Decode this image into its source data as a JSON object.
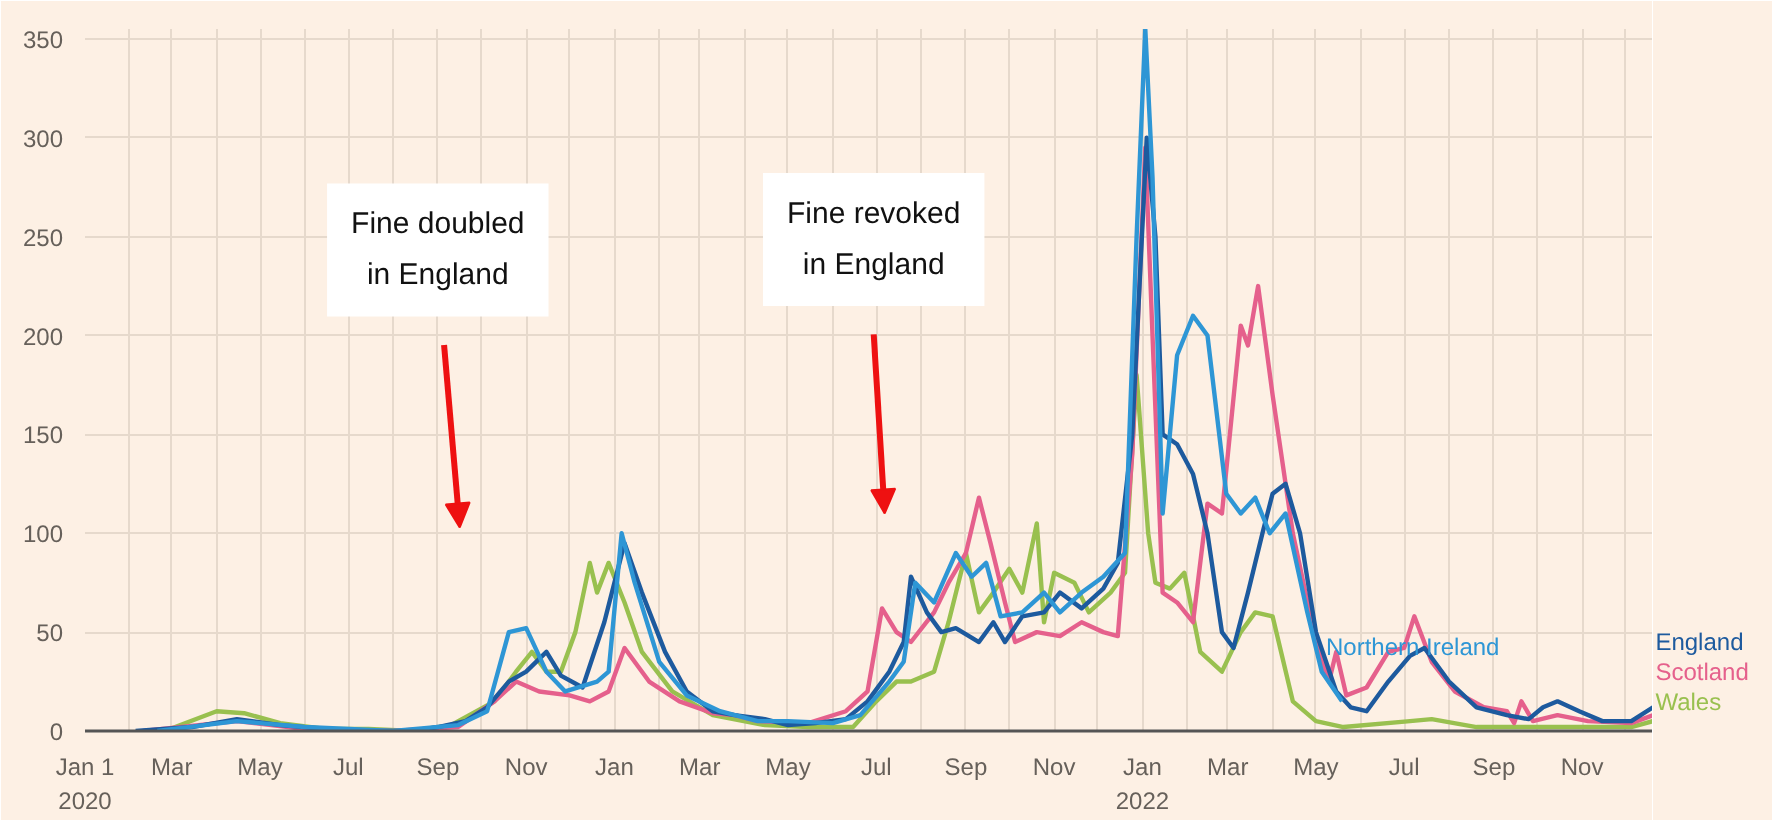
{
  "chart_data": {
    "type": "line",
    "annotations": [
      "Fine doubled\nin England",
      "Fine revoked\nin England"
    ],
    "xlim": [
      "2020-01-01",
      "2022-12-20"
    ],
    "ylim": [
      0,
      355
    ],
    "yticks": [
      0,
      50,
      100,
      150,
      200,
      250,
      300,
      350
    ],
    "xticks": [
      {
        "value": "2020-01-01",
        "label": "Jan 1\n2020"
      },
      {
        "value": "2020-02-01",
        "label": null
      },
      {
        "value": "2020-03-01",
        "label": "Mar"
      },
      {
        "value": "2020-04-01",
        "label": null
      },
      {
        "value": "2020-05-01",
        "label": "May"
      },
      {
        "value": "2020-06-01",
        "label": null
      },
      {
        "value": "2020-07-01",
        "label": "Jul"
      },
      {
        "value": "2020-08-01",
        "label": null
      },
      {
        "value": "2020-09-01",
        "label": "Sep"
      },
      {
        "value": "2020-10-01",
        "label": null
      },
      {
        "value": "2020-11-01",
        "label": "Nov"
      },
      {
        "value": "2020-12-01",
        "label": null
      },
      {
        "value": "2021-01-01",
        "label": "Jan"
      },
      {
        "value": "2021-02-01",
        "label": null
      },
      {
        "value": "2021-03-01",
        "label": "Mar"
      },
      {
        "value": "2021-04-01",
        "label": null
      },
      {
        "value": "2021-05-01",
        "label": "May"
      },
      {
        "value": "2021-06-01",
        "label": null
      },
      {
        "value": "2021-07-01",
        "label": "Jul"
      },
      {
        "value": "2021-08-01",
        "label": null
      },
      {
        "value": "2021-09-01",
        "label": "Sep"
      },
      {
        "value": "2021-10-01",
        "label": null
      },
      {
        "value": "2021-11-01",
        "label": "Nov"
      },
      {
        "value": "2021-12-01",
        "label": null
      },
      {
        "value": "2022-01-01",
        "label": "Jan\n2022"
      },
      {
        "value": "2022-02-01",
        "label": null
      },
      {
        "value": "2022-03-01",
        "label": "Mar"
      },
      {
        "value": "2022-04-01",
        "label": null
      },
      {
        "value": "2022-05-01",
        "label": "May"
      },
      {
        "value": "2022-06-01",
        "label": null
      },
      {
        "value": "2022-07-01",
        "label": "Jul"
      },
      {
        "value": "2022-08-01",
        "label": null
      },
      {
        "value": "2022-09-01",
        "label": "Sep"
      },
      {
        "value": "2022-10-01",
        "label": null
      },
      {
        "value": "2022-11-01",
        "label": "Nov"
      },
      {
        "value": "2022-12-01",
        "label": null
      }
    ],
    "grid": true,
    "series": [
      {
        "name": "Wales",
        "color": "#99c04f",
        "x": [
          "2020-02-25",
          "2020-04-01",
          "2020-04-20",
          "2020-05-15",
          "2020-06-15",
          "2020-07-15",
          "2020-08-15",
          "2020-09-10",
          "2020-10-10",
          "2020-10-25",
          "2020-11-05",
          "2020-11-15",
          "2020-11-25",
          "2020-12-05",
          "2020-12-15",
          "2020-12-20",
          "2020-12-28",
          "2021-01-08",
          "2021-01-20",
          "2021-02-10",
          "2021-03-10",
          "2021-04-15",
          "2021-05-15",
          "2021-06-15",
          "2021-07-01",
          "2021-07-15",
          "2021-07-25",
          "2021-08-10",
          "2021-08-20",
          "2021-09-01",
          "2021-09-10",
          "2021-09-20",
          "2021-10-01",
          "2021-10-10",
          "2021-10-20",
          "2021-10-25",
          "2021-11-01",
          "2021-11-15",
          "2021-11-25",
          "2021-12-10",
          "2021-12-20",
          "2021-12-28",
          "2022-01-05",
          "2022-01-10",
          "2022-01-20",
          "2022-01-30",
          "2022-02-10",
          "2022-02-25",
          "2022-03-10",
          "2022-03-20",
          "2022-04-01",
          "2022-04-15",
          "2022-05-01",
          "2022-05-20",
          "2022-07-05",
          "2022-07-20",
          "2022-08-20",
          "2022-10-15",
          "2022-12-05",
          "2022-12-20"
        ],
        "values": [
          0,
          10,
          9,
          4,
          1,
          1,
          0,
          3,
          15,
          30,
          40,
          30,
          30,
          50,
          85,
          70,
          85,
          65,
          40,
          20,
          8,
          3,
          2,
          2,
          15,
          25,
          25,
          30,
          55,
          90,
          60,
          70,
          82,
          70,
          105,
          55,
          80,
          75,
          60,
          70,
          80,
          180,
          100,
          75,
          72,
          80,
          40,
          30,
          50,
          60,
          58,
          15,
          5,
          2,
          5,
          6,
          2,
          2,
          2,
          5
        ]
      },
      {
        "name": "Scotland",
        "color": "#e5608c",
        "x": [
          "2020-02-10",
          "2020-04-15",
          "2020-06-01",
          "2020-08-01",
          "2020-09-15",
          "2020-10-10",
          "2020-10-25",
          "2020-11-10",
          "2020-12-01",
          "2020-12-15",
          "2020-12-28",
          "2021-01-08",
          "2021-01-25",
          "2021-02-15",
          "2021-03-10",
          "2021-03-25",
          "2021-04-10",
          "2021-05-15",
          "2021-06-10",
          "2021-06-25",
          "2021-07-05",
          "2021-07-15",
          "2021-07-25",
          "2021-08-10",
          "2021-08-20",
          "2021-09-01",
          "2021-09-10",
          "2021-09-18",
          "2021-09-28",
          "2021-10-05",
          "2021-10-20",
          "2021-11-05",
          "2021-11-20",
          "2021-12-05",
          "2021-12-15",
          "2021-12-25",
          "2022-01-03",
          "2022-01-08",
          "2022-01-15",
          "2022-01-25",
          "2022-02-05",
          "2022-02-15",
          "2022-02-25",
          "2022-03-10",
          "2022-03-15",
          "2022-03-22",
          "2022-04-01",
          "2022-04-15",
          "2022-05-01",
          "2022-05-10",
          "2022-05-15",
          "2022-05-22",
          "2022-06-05",
          "2022-06-20",
          "2022-07-01",
          "2022-07-08",
          "2022-07-20",
          "2022-08-05",
          "2022-08-25",
          "2022-09-10",
          "2022-09-15",
          "2022-09-20",
          "2022-09-28",
          "2022-10-15",
          "2022-11-05",
          "2022-12-05",
          "2022-12-20"
        ],
        "values": [
          0,
          5,
          1,
          0,
          2,
          15,
          25,
          20,
          18,
          15,
          20,
          42,
          25,
          15,
          9,
          8,
          5,
          4,
          10,
          20,
          62,
          50,
          45,
          60,
          75,
          90,
          118,
          95,
          65,
          45,
          50,
          48,
          55,
          50,
          48,
          140,
          295,
          200,
          70,
          65,
          55,
          115,
          110,
          205,
          195,
          225,
          170,
          100,
          45,
          25,
          40,
          18,
          22,
          40,
          42,
          58,
          35,
          20,
          12,
          10,
          4,
          15,
          5,
          8,
          5,
          4,
          8
        ]
      },
      {
        "name": "England",
        "color": "#1d5a9e",
        "x": [
          "2020-02-05",
          "2020-03-15",
          "2020-04-15",
          "2020-05-15",
          "2020-06-15",
          "2020-07-15",
          "2020-08-15",
          "2020-09-01",
          "2020-09-20",
          "2020-10-05",
          "2020-10-20",
          "2020-11-01",
          "2020-11-15",
          "2020-11-25",
          "2020-12-10",
          "2020-12-25",
          "2021-01-08",
          "2021-01-20",
          "2021-02-05",
          "2021-02-20",
          "2021-03-10",
          "2021-03-25",
          "2021-04-15",
          "2021-05-01",
          "2021-05-20",
          "2021-06-10",
          "2021-06-25",
          "2021-07-10",
          "2021-07-20",
          "2021-07-25",
          "2021-08-05",
          "2021-08-15",
          "2021-08-25",
          "2021-09-10",
          "2021-09-20",
          "2021-09-28",
          "2021-10-10",
          "2021-10-25",
          "2021-11-05",
          "2021-11-20",
          "2021-12-05",
          "2021-12-15",
          "2021-12-25",
          "2022-01-04",
          "2022-01-10",
          "2022-01-15",
          "2022-01-25",
          "2022-02-05",
          "2022-02-15",
          "2022-02-25",
          "2022-03-05",
          "2022-03-15",
          "2022-03-25",
          "2022-04-01",
          "2022-04-10",
          "2022-04-20",
          "2022-05-01",
          "2022-05-15",
          "2022-05-25",
          "2022-06-05",
          "2022-06-20",
          "2022-07-05",
          "2022-07-15",
          "2022-08-01",
          "2022-08-20",
          "2022-09-10",
          "2022-09-25",
          "2022-10-05",
          "2022-10-15",
          "2022-10-30",
          "2022-11-15",
          "2022-12-05",
          "2022-12-20"
        ],
        "values": [
          0,
          2,
          6,
          3,
          1,
          0,
          0,
          2,
          5,
          12,
          25,
          30,
          40,
          28,
          22,
          55,
          95,
          70,
          40,
          20,
          10,
          8,
          6,
          3,
          4,
          6,
          15,
          30,
          45,
          78,
          60,
          50,
          52,
          45,
          55,
          45,
          58,
          60,
          70,
          62,
          72,
          85,
          150,
          300,
          250,
          150,
          145,
          130,
          100,
          50,
          42,
          70,
          100,
          120,
          125,
          100,
          50,
          20,
          12,
          10,
          25,
          38,
          42,
          25,
          12,
          8,
          6,
          12,
          15,
          10,
          5,
          5,
          12
        ]
      },
      {
        "name": "Northern Ireland",
        "color": "#2e96d5",
        "x": [
          "2020-02-20",
          "2020-04-15",
          "2020-06-01",
          "2020-08-01",
          "2020-09-15",
          "2020-10-05",
          "2020-10-20",
          "2020-11-01",
          "2020-11-15",
          "2020-11-28",
          "2020-12-20",
          "2020-12-28",
          "2021-01-06",
          "2021-01-15",
          "2021-02-01",
          "2021-02-20",
          "2021-03-15",
          "2021-04-10",
          "2021-05-01",
          "2021-06-01",
          "2021-06-20",
          "2021-07-10",
          "2021-07-20",
          "2021-07-28",
          "2021-08-10",
          "2021-08-25",
          "2021-09-05",
          "2021-09-15",
          "2021-09-25",
          "2021-10-10",
          "2021-10-25",
          "2021-11-05",
          "2021-11-20",
          "2021-12-05",
          "2021-12-20",
          "2021-12-28",
          "2022-01-03",
          "2022-01-08",
          "2022-01-15",
          "2022-01-25",
          "2022-02-05",
          "2022-02-15",
          "2022-02-28",
          "2022-03-10",
          "2022-03-20",
          "2022-03-30",
          "2022-04-10",
          "2022-04-25",
          "2022-05-05",
          "2022-05-19"
        ],
        "values": [
          0,
          5,
          2,
          0,
          3,
          10,
          50,
          52,
          30,
          20,
          25,
          30,
          100,
          75,
          35,
          18,
          10,
          5,
          5,
          4,
          8,
          25,
          35,
          75,
          65,
          90,
          78,
          85,
          58,
          60,
          70,
          60,
          70,
          78,
          90,
          250,
          355,
          280,
          110,
          190,
          210,
          200,
          120,
          110,
          118,
          100,
          110,
          60,
          30,
          15
        ]
      }
    ]
  }
}
